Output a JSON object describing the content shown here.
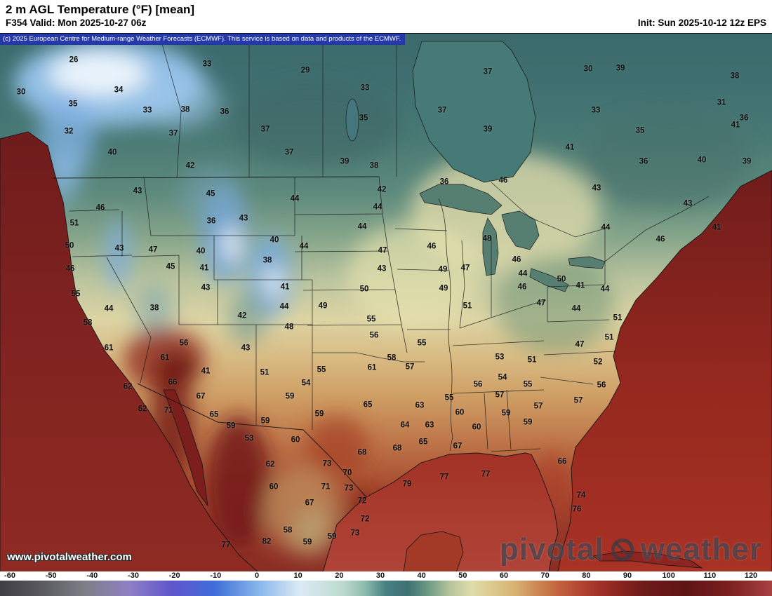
{
  "header": {
    "title": "2 m AGL Temperature (°F) [mean]",
    "valid": "F354 Valid: Mon 2025-10-27 06z",
    "init": "Init: Sun 2025-10-12 12z EPS"
  },
  "copyright": "(c) 2025 European Centre for Medium-range Weather Forecasts (ECMWF). This service is based on data and products of the ECMWF.",
  "watermark": {
    "url_text": "www.pivotalweather.com",
    "logo_left": "pivotal",
    "logo_right": "weather"
  },
  "colorbar": {
    "ticks": [
      -60,
      -50,
      -40,
      -30,
      -20,
      -10,
      0,
      10,
      20,
      30,
      40,
      50,
      60,
      70,
      80,
      90,
      100,
      110,
      120
    ],
    "stops": [
      {
        "t": -60,
        "color": "#3e3e44"
      },
      {
        "t": -50,
        "color": "#5a5a60"
      },
      {
        "t": -40,
        "color": "#7f7f88"
      },
      {
        "t": -30,
        "color": "#8f80c4"
      },
      {
        "t": -20,
        "color": "#6055cc"
      },
      {
        "t": -10,
        "color": "#3f6ed8"
      },
      {
        "t": 0,
        "color": "#86b4ea"
      },
      {
        "t": 10,
        "color": "#dceaf4"
      },
      {
        "t": 20,
        "color": "#bcdad0"
      },
      {
        "t": 25,
        "color": "#8fbcae"
      },
      {
        "t": 30,
        "color": "#478083"
      },
      {
        "t": 35,
        "color": "#3f7074"
      },
      {
        "t": 40,
        "color": "#6f9c84"
      },
      {
        "t": 45,
        "color": "#b8c49a"
      },
      {
        "t": 50,
        "color": "#dfddab"
      },
      {
        "t": 55,
        "color": "#dcc88e"
      },
      {
        "t": 60,
        "color": "#d8b273"
      },
      {
        "t": 65,
        "color": "#cc8a55"
      },
      {
        "t": 70,
        "color": "#c4643e"
      },
      {
        "t": 75,
        "color": "#b24732"
      },
      {
        "t": 80,
        "color": "#a03028"
      },
      {
        "t": 85,
        "color": "#862420"
      },
      {
        "t": 90,
        "color": "#6e1c1a"
      },
      {
        "t": 100,
        "color": "#5e1414"
      },
      {
        "t": 110,
        "color": "#7c2020"
      },
      {
        "t": 120,
        "color": "#a84040"
      }
    ]
  },
  "map": {
    "temperature_labels": [
      [
        26,
        105,
        85
      ],
      [
        33,
        295,
        91
      ],
      [
        29,
        435,
        100
      ],
      [
        37,
        695,
        102
      ],
      [
        30,
        838,
        98
      ],
      [
        39,
        884,
        97
      ],
      [
        38,
        1047,
        108
      ],
      [
        30,
        30,
        131
      ],
      [
        34,
        169,
        128
      ],
      [
        35,
        104,
        148
      ],
      [
        33,
        210,
        157
      ],
      [
        38,
        264,
        156
      ],
      [
        36,
        320,
        159
      ],
      [
        33,
        520,
        125
      ],
      [
        35,
        518,
        168
      ],
      [
        37,
        630,
        157
      ],
      [
        33,
        849,
        157
      ],
      [
        31,
        1028,
        146
      ],
      [
        36,
        1060,
        168
      ],
      [
        32,
        98,
        187
      ],
      [
        37,
        247,
        190
      ],
      [
        37,
        378,
        184
      ],
      [
        39,
        695,
        184
      ],
      [
        35,
        912,
        186
      ],
      [
        41,
        1048,
        178
      ],
      [
        40,
        160,
        217
      ],
      [
        37,
        412,
        217
      ],
      [
        41,
        812,
        210
      ],
      [
        36,
        917,
        230
      ],
      [
        40,
        1000,
        228
      ],
      [
        39,
        1064,
        230
      ],
      [
        42,
        271,
        236
      ],
      [
        39,
        491,
        230
      ],
      [
        38,
        533,
        236
      ],
      [
        36,
        633,
        259
      ],
      [
        43,
        196,
        272
      ],
      [
        45,
        300,
        276
      ],
      [
        44,
        420,
        283
      ],
      [
        42,
        544,
        270
      ],
      [
        46,
        717,
        257
      ],
      [
        43,
        850,
        268
      ],
      [
        43,
        980,
        290
      ],
      [
        46,
        143,
        296
      ],
      [
        51,
        106,
        318
      ],
      [
        36,
        301,
        315
      ],
      [
        43,
        347,
        311
      ],
      [
        44,
        516,
        323
      ],
      [
        44,
        538,
        295
      ],
      [
        50,
        99,
        350
      ],
      [
        43,
        170,
        354
      ],
      [
        47,
        218,
        356
      ],
      [
        40,
        286,
        358
      ],
      [
        40,
        391,
        342
      ],
      [
        44,
        433,
        351
      ],
      [
        38,
        381,
        371
      ],
      [
        47,
        545,
        357
      ],
      [
        46,
        615,
        351
      ],
      [
        48,
        694,
        340
      ],
      [
        46,
        736,
        370
      ],
      [
        44,
        863,
        324
      ],
      [
        46,
        941,
        341
      ],
      [
        41,
        1021,
        324
      ],
      [
        46,
        100,
        383
      ],
      [
        45,
        243,
        380
      ],
      [
        41,
        291,
        382
      ],
      [
        43,
        544,
        383
      ],
      [
        49,
        631,
        384
      ],
      [
        47,
        663,
        382
      ],
      [
        44,
        745,
        390
      ],
      [
        46,
        744,
        409
      ],
      [
        50,
        800,
        398
      ],
      [
        41,
        827,
        407
      ],
      [
        44,
        862,
        412
      ],
      [
        55,
        108,
        419
      ],
      [
        44,
        155,
        440
      ],
      [
        38,
        220,
        439
      ],
      [
        43,
        293,
        410
      ],
      [
        41,
        406,
        409
      ],
      [
        44,
        405,
        437
      ],
      [
        42,
        345,
        450
      ],
      [
        49,
        460,
        436
      ],
      [
        50,
        519,
        412
      ],
      [
        49,
        632,
        411
      ],
      [
        51,
        666,
        436
      ],
      [
        47,
        771,
        432
      ],
      [
        44,
        821,
        440
      ],
      [
        51,
        880,
        453
      ],
      [
        58,
        125,
        460
      ],
      [
        48,
        412,
        466
      ],
      [
        55,
        529,
        455
      ],
      [
        56,
        533,
        478
      ],
      [
        55,
        601,
        489
      ],
      [
        53,
        712,
        509
      ],
      [
        51,
        758,
        513
      ],
      [
        61,
        155,
        496
      ],
      [
        56,
        262,
        489
      ],
      [
        43,
        350,
        496
      ],
      [
        61,
        235,
        510
      ],
      [
        41,
        293,
        529
      ],
      [
        51,
        377,
        531
      ],
      [
        55,
        458,
        527
      ],
      [
        54,
        436,
        546
      ],
      [
        58,
        558,
        510
      ],
      [
        61,
        530,
        524
      ],
      [
        57,
        584,
        523
      ],
      [
        47,
        826,
        491
      ],
      [
        51,
        868,
        481
      ],
      [
        52,
        852,
        516
      ],
      [
        54,
        716,
        538
      ],
      [
        57,
        712,
        563
      ],
      [
        55,
        752,
        548
      ],
      [
        56,
        857,
        549
      ],
      [
        62,
        182,
        551
      ],
      [
        66,
        246,
        545
      ],
      [
        67,
        286,
        565
      ],
      [
        62,
        203,
        583
      ],
      [
        71,
        240,
        585
      ],
      [
        65,
        305,
        591
      ],
      [
        59,
        329,
        607
      ],
      [
        59,
        413,
        565
      ],
      [
        59,
        455,
        590
      ],
      [
        55,
        640,
        567
      ],
      [
        56,
        681,
        548
      ],
      [
        59,
        721,
        589
      ],
      [
        57,
        767,
        579
      ],
      [
        59,
        752,
        602
      ],
      [
        57,
        824,
        571
      ],
      [
        65,
        524,
        577
      ],
      [
        63,
        598,
        578
      ],
      [
        64,
        577,
        606
      ],
      [
        63,
        612,
        606
      ],
      [
        60,
        655,
        588
      ],
      [
        60,
        679,
        609
      ],
      [
        53,
        355,
        625
      ],
      [
        59,
        378,
        600
      ],
      [
        60,
        421,
        627
      ],
      [
        62,
        385,
        662
      ],
      [
        68,
        516,
        645
      ],
      [
        68,
        566,
        639
      ],
      [
        65,
        603,
        630
      ],
      [
        67,
        652,
        636
      ],
      [
        73,
        466,
        661
      ],
      [
        70,
        495,
        674
      ],
      [
        79,
        580,
        690
      ],
      [
        77,
        633,
        680
      ],
      [
        77,
        692,
        676
      ],
      [
        66,
        801,
        658
      ],
      [
        60,
        390,
        694
      ],
      [
        71,
        464,
        694
      ],
      [
        73,
        497,
        696
      ],
      [
        67,
        441,
        717
      ],
      [
        72,
        516,
        714
      ],
      [
        72,
        520,
        740
      ],
      [
        74,
        828,
        706
      ],
      [
        76,
        822,
        726
      ],
      [
        58,
        410,
        756
      ],
      [
        59,
        438,
        773
      ],
      [
        59,
        473,
        765
      ],
      [
        82,
        380,
        772
      ],
      [
        73,
        506,
        760
      ],
      [
        77,
        322,
        777
      ]
    ]
  }
}
